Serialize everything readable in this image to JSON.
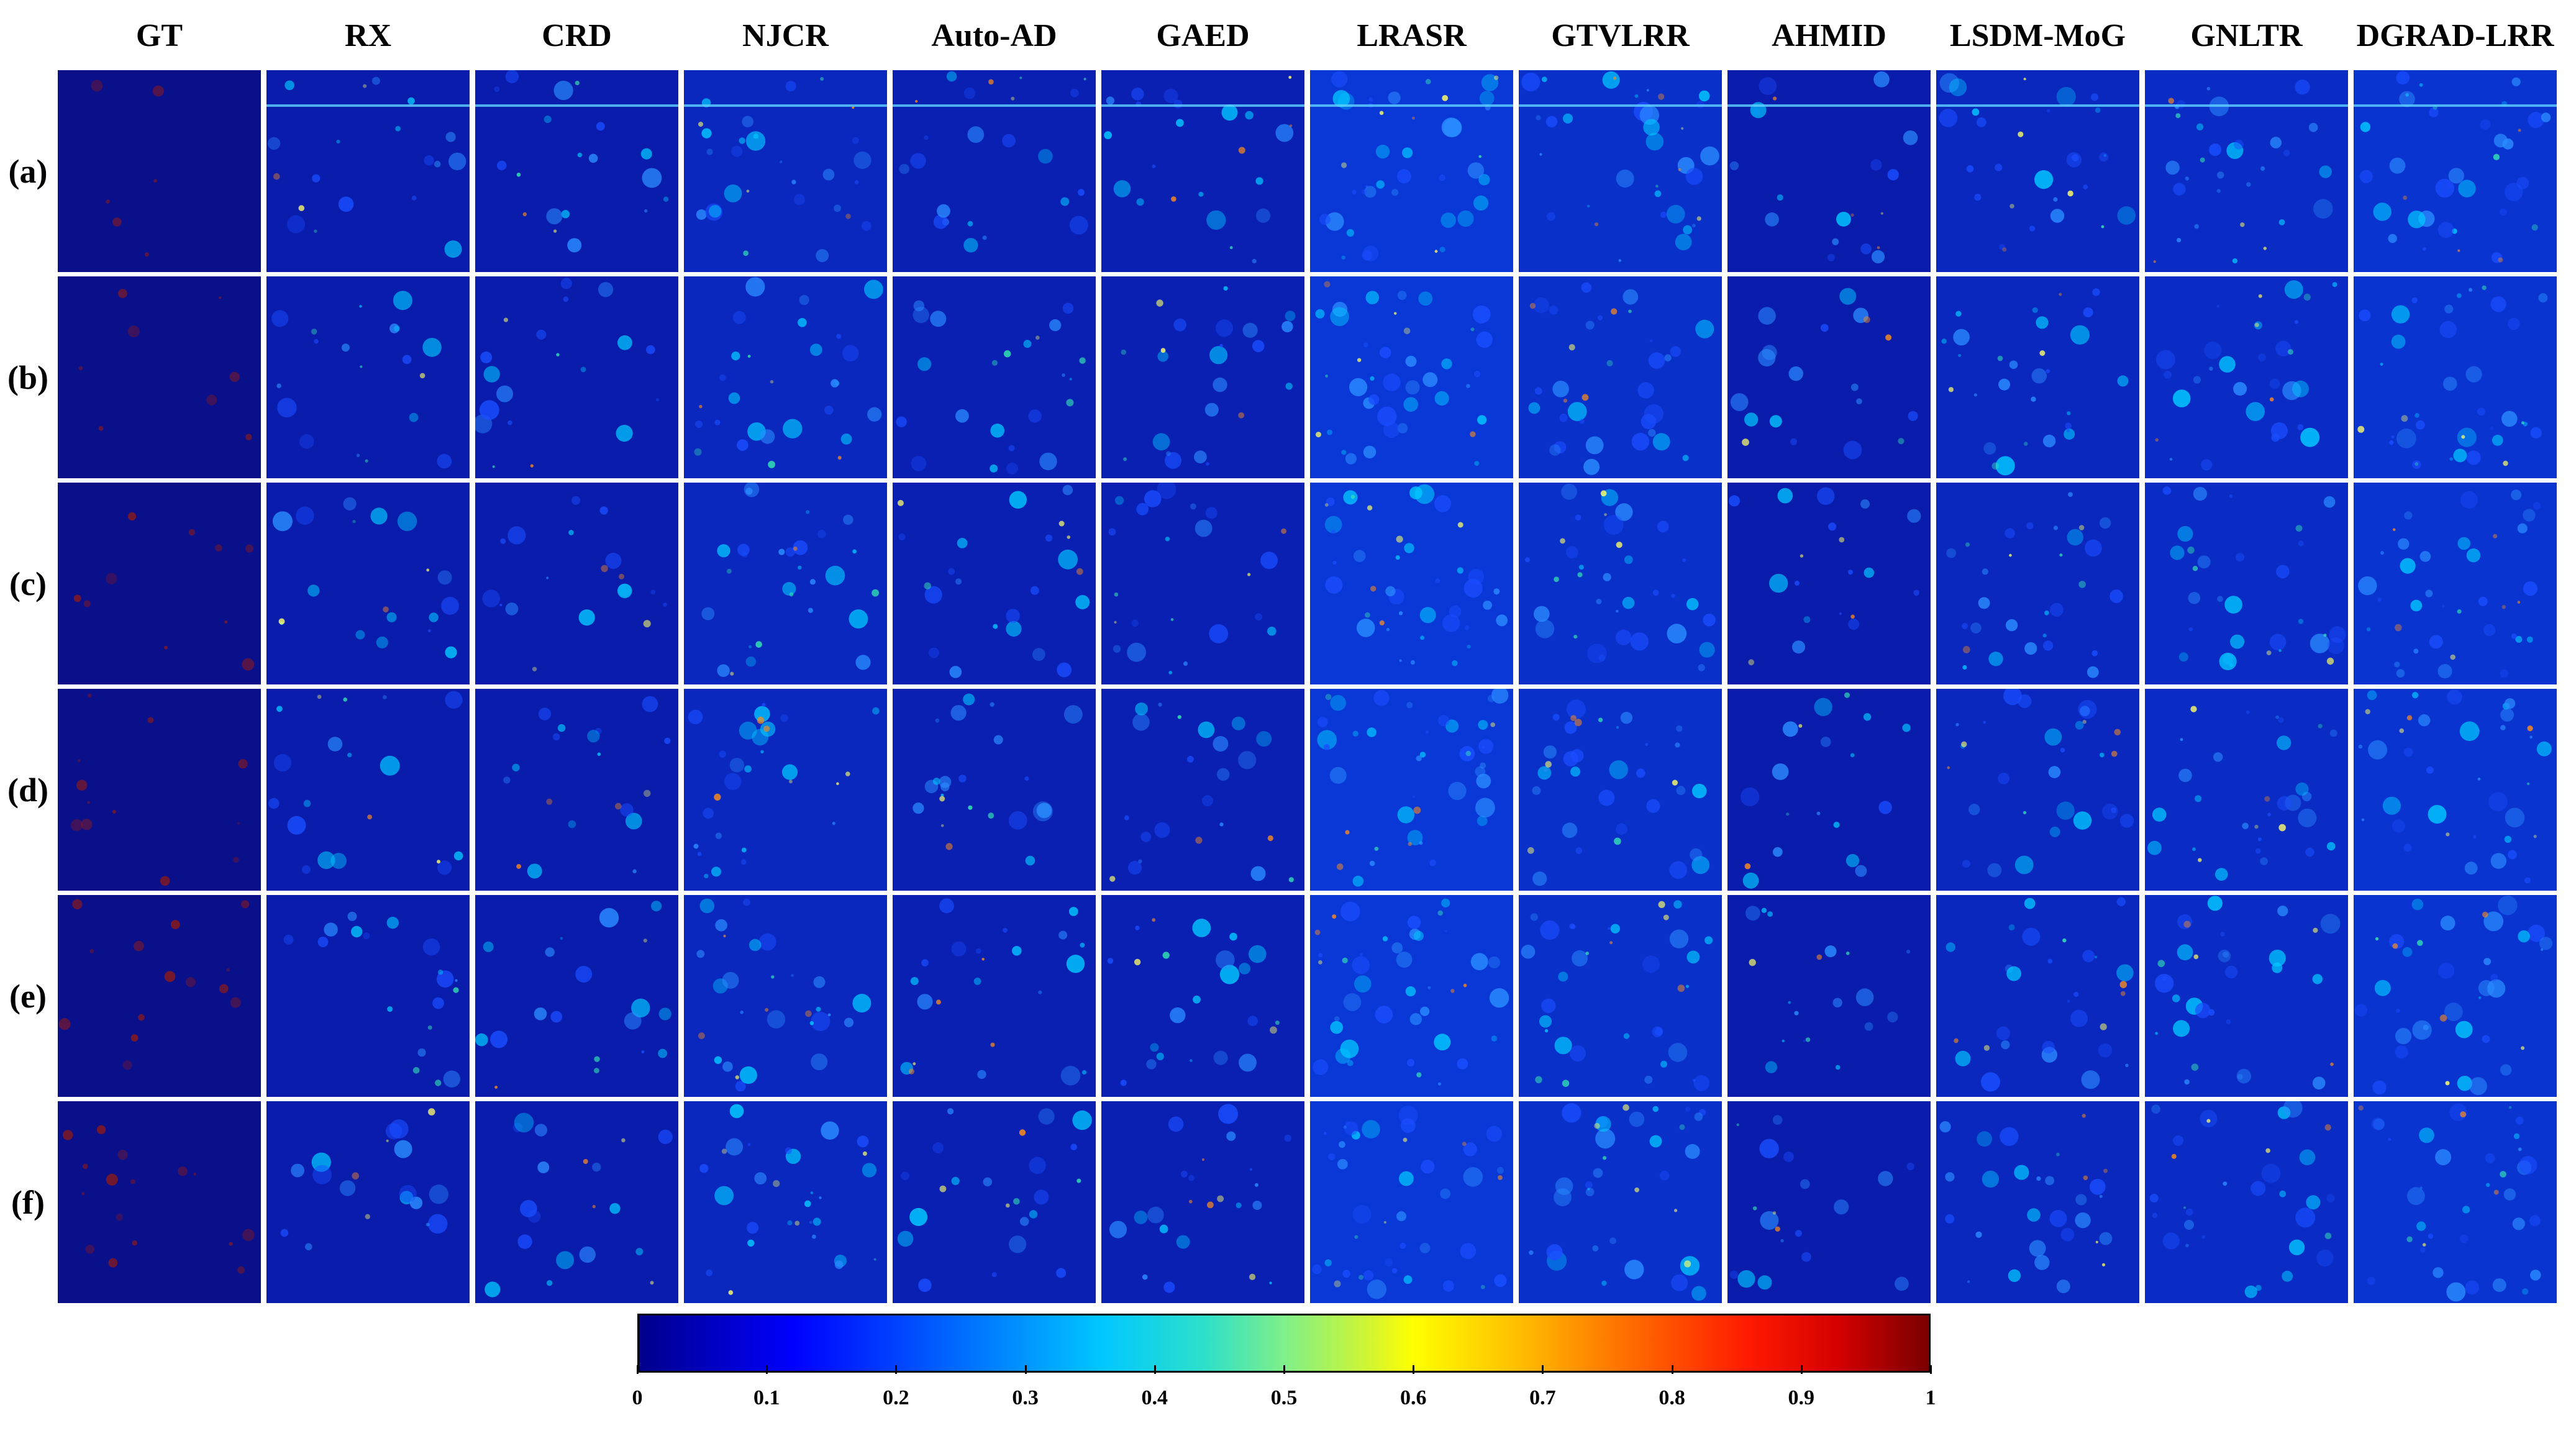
{
  "columns": [
    "GT",
    "RX",
    "CRD",
    "NJCR",
    "Auto-AD",
    "GAED",
    "LRASR",
    "GTVLRR",
    "AHMID",
    "LSDM-MoG",
    "GNLTR",
    "DGRAD-LRR"
  ],
  "rows": [
    "(a)",
    "(b)",
    "(c)",
    "(d)",
    "(e)",
    "(f)"
  ],
  "colorbar": {
    "ticks": [
      "0",
      "0.1",
      "0.2",
      "0.3",
      "0.4",
      "0.5",
      "0.6",
      "0.7",
      "0.8",
      "0.9",
      "1"
    ],
    "range": [
      0,
      1
    ],
    "colormap": "jet",
    "colors": {
      "low": "#00008b",
      "mid": "#7fef8a",
      "high": "#7a0000"
    }
  },
  "palette": {
    "background_map": "#0a14a2",
    "anomaly_gt": "#8b1a1a",
    "highlight": "#ffff66"
  }
}
